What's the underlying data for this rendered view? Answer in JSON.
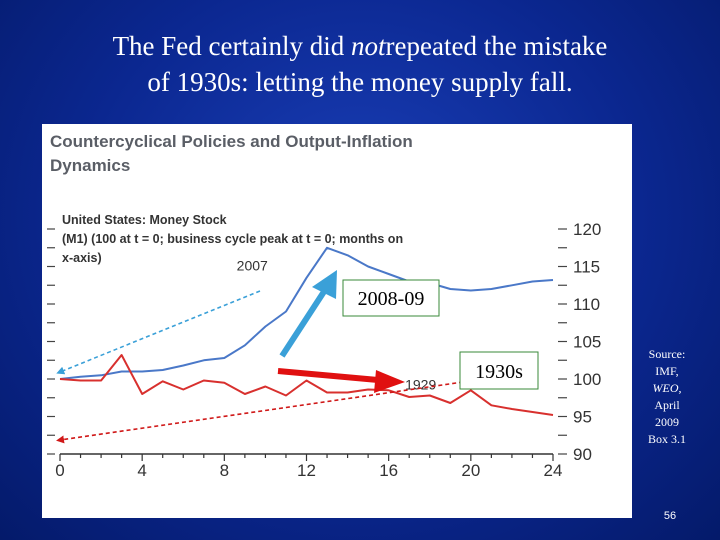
{
  "slide": {
    "title_line1_before": "The Fed certainly did ",
    "title_line1_italic": "not",
    "title_line1_after": "repeated the mistake",
    "title_line2": "of 1930s: letting the money supply fall.",
    "source_lines": [
      "Source:",
      "IMF,",
      "WEO,",
      "April",
      "2009",
      "Box 3.1"
    ],
    "page_number": "56"
  },
  "chart_data": {
    "type": "line",
    "title": "Countercyclical Policies and Output-Inflation Dynamics",
    "subtitle": "United States: Money Stock (M1) (100 at t = 0; business cycle peak at t = 0; months on x-axis)",
    "xlabel": "",
    "ylabel": "",
    "xlim": [
      0,
      24
    ],
    "ylim": [
      90,
      120
    ],
    "x_ticks": [
      0,
      4,
      8,
      12,
      16,
      20,
      24
    ],
    "y_ticks": [
      90,
      95,
      100,
      105,
      110,
      115,
      120
    ],
    "series": [
      {
        "name": "2007",
        "color": "#4a78c8",
        "x": [
          0,
          1,
          2,
          3,
          4,
          5,
          6,
          7,
          8,
          9,
          10,
          11,
          12,
          13,
          14,
          15,
          16,
          17,
          18,
          19,
          20,
          21,
          22,
          23,
          24
        ],
        "y": [
          100,
          100.3,
          100.5,
          101,
          101,
          101.2,
          101.8,
          102.5,
          102.8,
          104.5,
          107,
          109,
          113.5,
          117.5,
          116.5,
          115,
          114,
          113,
          112.8,
          112,
          111.8,
          112,
          112.5,
          113,
          113.2
        ]
      },
      {
        "name": "1929",
        "color": "#d8302e",
        "x": [
          0,
          1,
          2,
          3,
          4,
          5,
          6,
          7,
          8,
          9,
          10,
          11,
          12,
          13,
          14,
          15,
          16,
          17,
          18,
          19,
          20,
          21,
          22,
          23,
          24
        ],
        "y": [
          100,
          99.8,
          99.8,
          103.2,
          98,
          99.7,
          98.6,
          99.8,
          99.5,
          98,
          99,
          97.8,
          99.8,
          98.2,
          98.2,
          98.6,
          98.5,
          97.6,
          97.8,
          96.8,
          98.5,
          96.5,
          96,
          95.6,
          95.2
        ]
      }
    ],
    "annotations": [
      "2008-09",
      "1930s"
    ],
    "grid": false,
    "legend": "inline labels"
  }
}
